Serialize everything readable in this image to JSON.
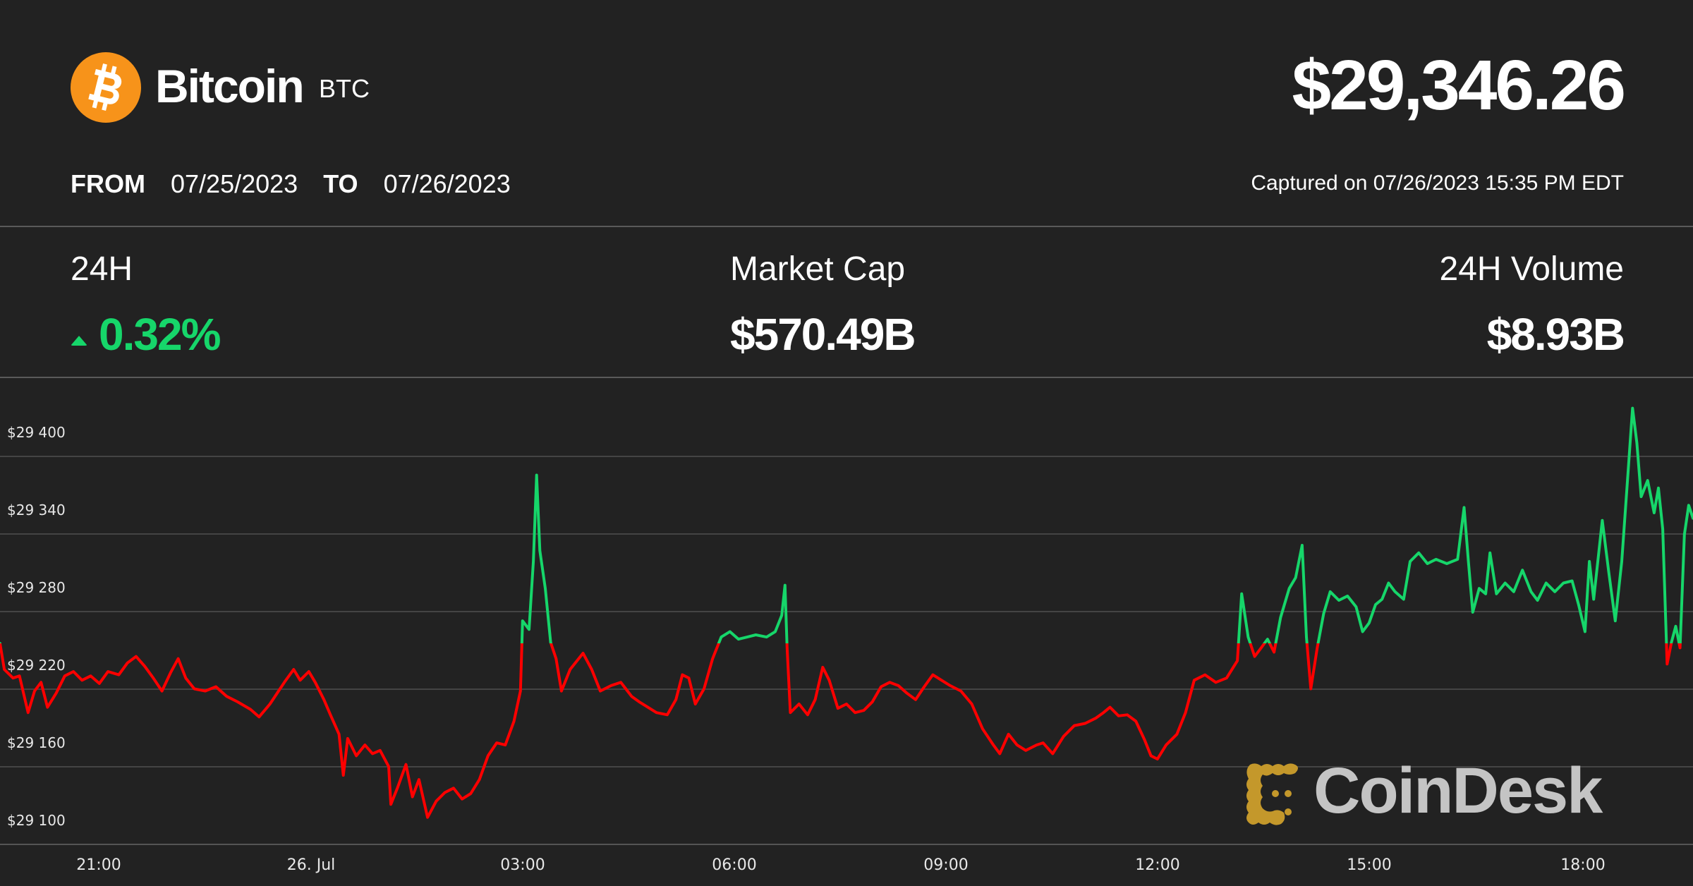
{
  "header": {
    "coin_name": "Bitcoin",
    "coin_symbol": "BTC",
    "price": "$29,346.26",
    "from_label": "FROM",
    "from_date": "07/25/2023",
    "to_label": "TO",
    "to_date": "07/26/2023",
    "captured": "Captured on 07/26/2023 15:35 PM EDT",
    "logo_icon": "bitcoin-logo-icon",
    "brand_color": "#f7931a"
  },
  "stats": {
    "change": {
      "label": "24H",
      "value": "0.32%",
      "direction": "up",
      "icon": "triangle-up-icon",
      "color": "#16d66a"
    },
    "market_cap": {
      "label": "Market Cap",
      "value": "$570.49B"
    },
    "volume": {
      "label": "24H Volume",
      "value": "$8.93B"
    }
  },
  "watermark": {
    "text": "CoinDesk",
    "icon": "coindesk-logo-icon",
    "accent": "#c4982b"
  },
  "colors": {
    "up": "#16d66a",
    "down": "#ff0000",
    "background": "#222222"
  },
  "chart_data": {
    "type": "line",
    "title": "Bitcoin BTC price, 07/25/2023 – 07/26/2023",
    "xlabel": "",
    "ylabel": "",
    "x_ticks": [
      "21:00",
      "26. Jul",
      "03:00",
      "06:00",
      "09:00",
      "12:00",
      "15:00",
      "18:00"
    ],
    "y_ticks": [
      "$29 400",
      "$29 340",
      "$29 280",
      "$29 220",
      "$29 160",
      "$29 100"
    ],
    "ylim": [
      29070,
      29420
    ],
    "grid": true,
    "legend": "none",
    "reference_price": 29255,
    "color_above_reference": "#16d66a",
    "color_below_reference": "#ff0000",
    "series": [
      {
        "name": "BTC price (approx, USD)",
        "x": [
          "19:40",
          "20:00",
          "20:30",
          "21:00",
          "21:30",
          "22:00",
          "22:30",
          "23:00",
          "23:30",
          "00:00",
          "00:30",
          "01:00",
          "01:30",
          "02:00",
          "02:30",
          "03:00",
          "03:08",
          "03:30",
          "04:00",
          "04:30",
          "05:00",
          "05:30",
          "06:00",
          "06:40",
          "06:45",
          "07:00",
          "07:30",
          "08:00",
          "08:30",
          "09:00",
          "09:30",
          "10:00",
          "10:30",
          "11:00",
          "11:30",
          "12:00",
          "12:30",
          "13:00",
          "13:15",
          "13:30",
          "14:00",
          "14:15",
          "14:30",
          "15:00",
          "15:30",
          "16:00",
          "16:30",
          "17:00",
          "17:30",
          "18:00",
          "18:15",
          "18:30",
          "18:45",
          "19:00"
        ],
        "values": [
          29255,
          29215,
          29215,
          29225,
          29230,
          29215,
          29200,
          29205,
          29215,
          29190,
          29145,
          29125,
          29115,
          29135,
          29170,
          29225,
          29370,
          29215,
          29225,
          29205,
          29195,
          29200,
          29245,
          29250,
          29285,
          29200,
          29200,
          29210,
          29215,
          29210,
          29175,
          29160,
          29170,
          29180,
          29180,
          29165,
          29215,
          29215,
          29250,
          29240,
          29235,
          29195,
          29260,
          29255,
          29280,
          29275,
          29265,
          29260,
          29270,
          29290,
          29405,
          29330,
          29220,
          29345
        ]
      }
    ]
  }
}
